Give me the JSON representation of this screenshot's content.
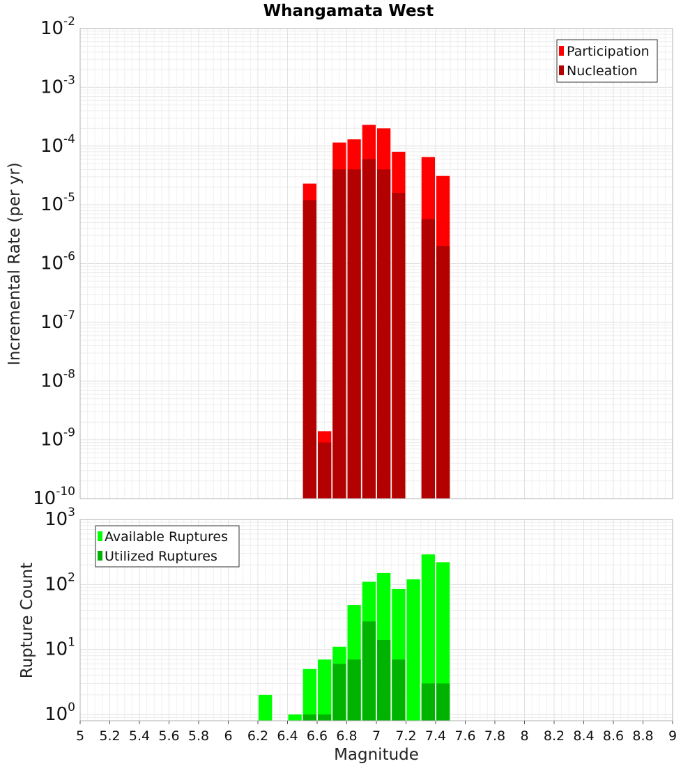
{
  "chart_data": [
    {
      "type": "bar",
      "title": "Whangamata West",
      "ylabel": "Incremental Rate (per yr)",
      "xlabel": "",
      "y_scale": "log",
      "ylim": [
        1e-10,
        0.01
      ],
      "xlim": [
        5,
        9
      ],
      "grid": true,
      "legend_position": "top-right",
      "series": [
        {
          "name": "Participation",
          "color": "#ff0000",
          "x": [
            6.55,
            6.65,
            6.75,
            6.85,
            6.95,
            7.05,
            7.15,
            7.35,
            7.45
          ],
          "values": [
            2.3e-05,
            1.4e-09,
            0.000115,
            0.00013,
            0.00023,
            0.0002,
            8e-05,
            6.5e-05,
            3.1e-05
          ]
        },
        {
          "name": "Nucleation",
          "color": "#b30000",
          "x": [
            6.55,
            6.65,
            6.75,
            6.85,
            6.95,
            7.05,
            7.15,
            7.35,
            7.45
          ],
          "values": [
            1.2e-05,
            9e-10,
            4e-05,
            4e-05,
            6e-05,
            4e-05,
            1.6e-05,
            5.7e-06,
            2e-06
          ]
        }
      ]
    },
    {
      "type": "bar",
      "title": "",
      "ylabel": "Rupture Count",
      "xlabel": "Magnitude",
      "y_scale": "log",
      "ylim": [
        0.8,
        1000
      ],
      "xlim": [
        5,
        9
      ],
      "grid": true,
      "legend_position": "top-left",
      "x_ticks": [
        "5",
        "5.2",
        "5.4",
        "5.6",
        "5.8",
        "6",
        "6.2",
        "6.4",
        "6.6",
        "6.8",
        "7",
        "7.2",
        "7.4",
        "7.6",
        "7.8",
        "8",
        "8.2",
        "8.4",
        "8.6",
        "8.8",
        "9"
      ],
      "series": [
        {
          "name": "Available Ruptures",
          "color": "#00ff00",
          "x": [
            6.25,
            6.45,
            6.55,
            6.65,
            6.75,
            6.85,
            6.95,
            7.05,
            7.15,
            7.25,
            7.35,
            7.45
          ],
          "values": [
            2,
            1,
            5,
            7,
            11,
            48,
            110,
            150,
            85,
            120,
            290,
            220
          ]
        },
        {
          "name": "Utilized Ruptures",
          "color": "#00b300",
          "x": [
            6.55,
            6.65,
            6.75,
            6.85,
            6.95,
            7.05,
            7.15,
            7.35,
            7.45
          ],
          "values": [
            1,
            1,
            6,
            7,
            27,
            14,
            7,
            3,
            3
          ]
        }
      ]
    }
  ]
}
